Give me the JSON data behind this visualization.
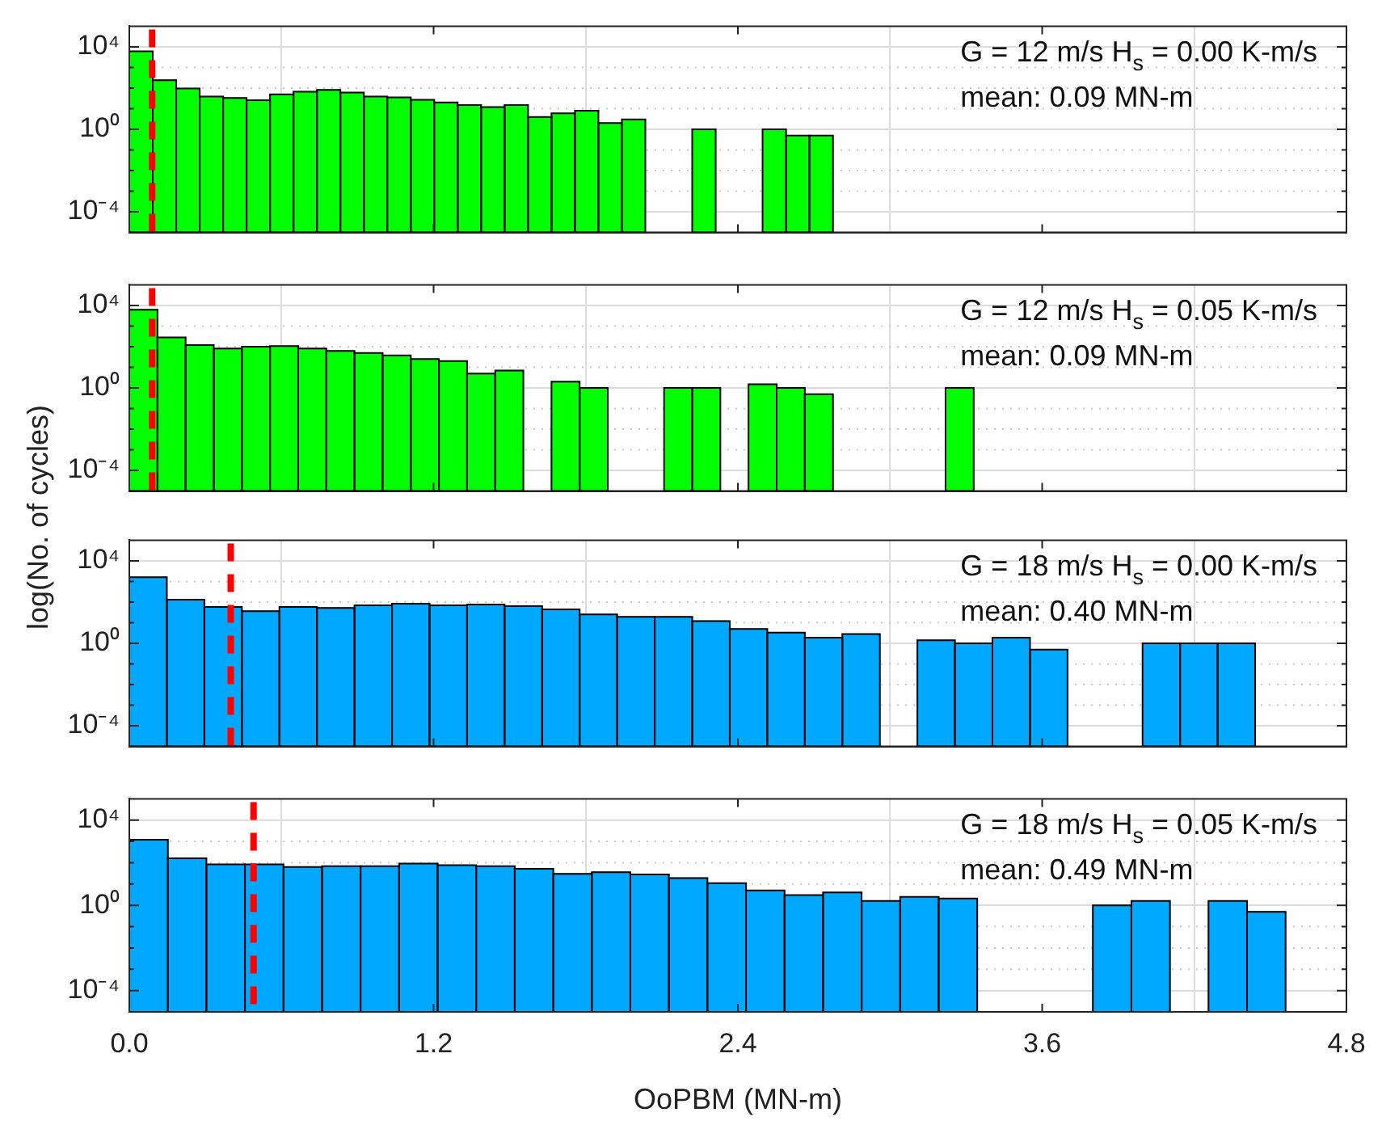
{
  "chart_data": [
    {
      "type": "histogram",
      "color": "#00ff00",
      "bins": [
        0,
        0.0925,
        0.185,
        0.2775,
        0.37,
        0.4625,
        0.555,
        0.6475,
        0.74,
        0.8325,
        0.925,
        1.0175,
        1.11,
        1.2025,
        1.295,
        1.3875,
        1.48,
        1.5725,
        1.665,
        1.7575,
        1.85,
        1.9425,
        2.035,
        2.1275,
        2.22,
        2.3125,
        2.405,
        2.4975,
        2.59,
        2.6825,
        2.775
      ],
      "values": [
        6000,
        240,
        96,
        39,
        33,
        26,
        50,
        67,
        81,
        60,
        39,
        35,
        27,
        20,
        15,
        12,
        15,
        4,
        6,
        8,
        2,
        3,
        null,
        null,
        1,
        null,
        null,
        1,
        0.5,
        0.5
      ],
      "xlim": [
        0,
        4.8
      ],
      "xticks": [
        0,
        1.2,
        2.4,
        3.6,
        4.8
      ],
      "ylim": [
        1e-05,
        100000
      ],
      "yticks": [
        {
          "value": 0.0001,
          "label": "10⁻⁴"
        },
        {
          "value": 0.001,
          "label": null
        },
        {
          "value": 0.01,
          "label": null
        },
        {
          "value": 0.1,
          "label": null
        },
        {
          "value": 1,
          "label": "10⁰"
        },
        {
          "value": 10,
          "label": null
        },
        {
          "value": 100,
          "label": null
        },
        {
          "value": 1000,
          "label": null
        },
        {
          "value": 10000,
          "label": "10⁴"
        }
      ],
      "log": "y",
      "grid": true,
      "tick_labels": "y",
      "ref_lines": [
        {
          "axis": "x",
          "value": 0.09,
          "label": null,
          "color": "#ff0000",
          "line_style": "dashed"
        }
      ],
      "annotations": [
        "G = 12 m/s H$_{s}$ = 0.00 K-m/s",
        "mean: 0.09 MN-m"
      ]
    },
    {
      "type": "histogram",
      "color": "#00ff00",
      "ylabel": "log(No. of cycles)",
      "bins": [
        0,
        0.111,
        0.222,
        0.333,
        0.444,
        0.555,
        0.666,
        0.777,
        0.888,
        0.999,
        1.11,
        1.221,
        1.332,
        1.443,
        1.554,
        1.665,
        1.776,
        1.887,
        1.998,
        2.109,
        2.22,
        2.331,
        2.442,
        2.553,
        2.664,
        2.775,
        2.886,
        2.997,
        3.108,
        3.219,
        3.33
      ],
      "values": [
        6200,
        280,
        120,
        81,
        100,
        107,
        81,
        62,
        50,
        38,
        25,
        20,
        5,
        7,
        null,
        2,
        1,
        null,
        null,
        1,
        1,
        null,
        1.5,
        1,
        0.5,
        null,
        null,
        null,
        null,
        1
      ],
      "xlim": [
        0,
        4.8
      ],
      "xticks": [
        0,
        1.2,
        2.4,
        3.6,
        4.8
      ],
      "ylim": [
        1e-05,
        100000
      ],
      "yticks": [
        {
          "value": 0.0001,
          "label": "10⁻⁴"
        },
        {
          "value": 0.001,
          "label": null
        },
        {
          "value": 0.01,
          "label": null
        },
        {
          "value": 0.1,
          "label": null
        },
        {
          "value": 1,
          "label": "10⁰"
        },
        {
          "value": 10,
          "label": null
        },
        {
          "value": 100,
          "label": null
        },
        {
          "value": 1000,
          "label": null
        },
        {
          "value": 10000,
          "label": "10⁴"
        }
      ],
      "log": "y",
      "grid": true,
      "tick_labels": "y",
      "ref_lines": [
        {
          "axis": "x",
          "value": 0.09,
          "label": null,
          "color": "#ff0000",
          "line_style": "dashed"
        }
      ],
      "annotations": [
        "G = 12 m/s H$_{s}$ = 0.05 K-m/s",
        "mean: 0.09 MN-m"
      ]
    },
    {
      "type": "histogram",
      "color": "#00a9ff",
      "bins": [
        0,
        0.148,
        0.296,
        0.444,
        0.592,
        0.74,
        0.888,
        1.036,
        1.184,
        1.332,
        1.48,
        1.628,
        1.776,
        1.924,
        2.072,
        2.22,
        2.368,
        2.516,
        2.664,
        2.812,
        2.96,
        3.108,
        3.256,
        3.404,
        3.552,
        3.7,
        3.848,
        3.996,
        4.144,
        4.292,
        4.44
      ],
      "values": [
        1600,
        130,
        58,
        36,
        58,
        52,
        69,
        83,
        69,
        76,
        63,
        44,
        25,
        19,
        19,
        12,
        5,
        3.3,
        1.9,
        2.8,
        null,
        1.4,
        1,
        1.9,
        0.5,
        null,
        null,
        1,
        1,
        1
      ],
      "xlim": [
        0,
        4.8
      ],
      "xticks": [
        0,
        1.2,
        2.4,
        3.6,
        4.8
      ],
      "ylim": [
        1e-05,
        100000
      ],
      "yticks": [
        {
          "value": 0.0001,
          "label": "10⁻⁴"
        },
        {
          "value": 0.001,
          "label": null
        },
        {
          "value": 0.01,
          "label": null
        },
        {
          "value": 0.1,
          "label": null
        },
        {
          "value": 1,
          "label": "10⁰"
        },
        {
          "value": 10,
          "label": null
        },
        {
          "value": 100,
          "label": null
        },
        {
          "value": 1000,
          "label": null
        },
        {
          "value": 10000,
          "label": "10⁴"
        }
      ],
      "log": "y",
      "grid": true,
      "tick_labels": "y",
      "ref_lines": [
        {
          "axis": "x",
          "value": 0.4,
          "label": null,
          "color": "#ff0000",
          "line_style": "dashed"
        }
      ],
      "annotations": [
        "G = 18 m/s H$_{s}$ = 0.00 K-m/s",
        "mean: 0.40 MN-m"
      ]
    },
    {
      "type": "histogram",
      "color": "#00a9ff",
      "xlabel": "OoPBM (MN-m)",
      "bins": [
        0,
        0.152,
        0.304,
        0.456,
        0.608,
        0.76,
        0.912,
        1.064,
        1.216,
        1.368,
        1.52,
        1.672,
        1.824,
        1.976,
        2.128,
        2.28,
        2.432,
        2.584,
        2.736,
        2.888,
        3.04,
        3.192,
        3.344,
        3.496,
        3.648,
        3.8,
        3.952,
        4.104,
        4.256,
        4.408,
        4.56
      ],
      "values": [
        1200,
        160,
        83,
        83,
        63,
        69,
        69,
        91,
        76,
        69,
        52,
        30,
        36,
        28,
        19,
        11,
        5,
        3,
        4,
        1.6,
        2.5,
        2.1,
        null,
        null,
        null,
        1,
        1.6,
        null,
        1.6,
        0.5
      ],
      "xlim": [
        0,
        4.8
      ],
      "xticks": [
        {
          "value": 0,
          "label": "0.0"
        },
        1.2,
        2.4,
        3.6,
        4.8
      ],
      "ylim": [
        1e-05,
        100000
      ],
      "yticks": [
        {
          "value": 0.0001,
          "label": "10⁻⁴"
        },
        {
          "value": 0.001,
          "label": null
        },
        {
          "value": 0.01,
          "label": null
        },
        {
          "value": 0.1,
          "label": null
        },
        {
          "value": 1,
          "label": "10⁰"
        },
        {
          "value": 10,
          "label": null
        },
        {
          "value": 100,
          "label": null
        },
        {
          "value": 1000,
          "label": null
        },
        {
          "value": 10000,
          "label": "10⁴"
        }
      ],
      "log": "y",
      "grid": true,
      "ref_lines": [
        {
          "axis": "x",
          "value": 0.49,
          "label": null,
          "color": "#ff0000",
          "line_style": "dashed"
        }
      ],
      "annotations": [
        "G = 18 m/s H$_{s}$ = 0.05 K-m/s",
        "mean: 0.49 MN-m"
      ]
    }
  ]
}
